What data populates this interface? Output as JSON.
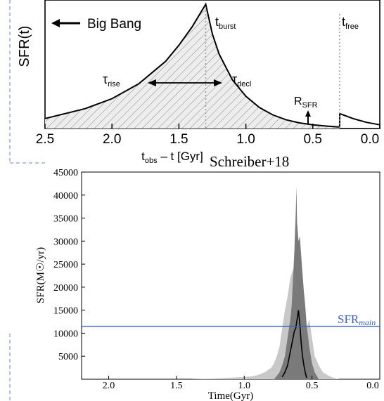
{
  "chart_data": [
    {
      "type": "line",
      "xlabel": "t_obs – t [Gyr]",
      "ylabel": "SFR(t)",
      "xlim": [
        2.5,
        0.0
      ],
      "x_ticks": [
        "2.5",
        "2.0",
        "1.5",
        "1.0",
        "0.5",
        "0.0"
      ],
      "x_tick_values": [
        2.5,
        2.0,
        1.5,
        1.0,
        0.5,
        0.0
      ],
      "y_ticks_shown": false,
      "grid": false,
      "series": [
        {
          "x": [
            2.5,
            2.2,
            2.0,
            1.8,
            1.6,
            1.5,
            1.4,
            1.3,
            1.25,
            1.2,
            1.1,
            1.0,
            0.9,
            0.8,
            0.7,
            0.6,
            0.5,
            0.4,
            0.3,
            0.299,
            0.2,
            0.1,
            0.0
          ],
          "values": [
            0.08,
            0.16,
            0.24,
            0.36,
            0.54,
            0.67,
            0.82,
            1.0,
            0.76,
            0.6,
            0.39,
            0.26,
            0.17,
            0.11,
            0.07,
            0.045,
            0.03,
            0.02,
            0.012,
            0.12,
            0.08,
            0.05,
            0.03
          ]
        }
      ],
      "annotations": {
        "big_bang": "Big Bang",
        "t_burst_main": "t",
        "t_burst_sub": "burst",
        "t_free_main": "t",
        "t_free_sub": "free",
        "tau_rise_main": "τ",
        "tau_rise_sub": "rise",
        "tau_decl_main": "τ",
        "tau_decl_sub": "decl",
        "r_sfr_main": "R",
        "r_sfr_sub": "SFR",
        "t_burst_x": 1.3,
        "t_free_x": 0.3
      },
      "credit": "Schreiber+18"
    },
    {
      "type": "area",
      "xlabel": "Time(Gyr)",
      "ylabel": "SFR(M☉/yr)",
      "xlim": [
        2.2,
        0.0
      ],
      "ylim": [
        0,
        45000
      ],
      "x_ticks": [
        "2.0",
        "1.5",
        "1.0",
        "0.5",
        "0.0"
      ],
      "x_tick_values": [
        2.0,
        1.5,
        1.0,
        0.5,
        0.0
      ],
      "y_ticks": [
        "5000",
        "10000",
        "15000",
        "20000",
        "25000",
        "30000",
        "35000",
        "40000",
        "45000"
      ],
      "y_tick_values": [
        5000,
        10000,
        15000,
        20000,
        25000,
        30000,
        35000,
        40000,
        45000
      ],
      "grid": false,
      "series": [
        {
          "name": "light",
          "x": [
            1.4,
            1.2,
            1.05,
            0.95,
            0.9,
            0.85,
            0.8,
            0.78,
            0.76,
            0.74,
            0.72,
            0.7,
            0.68,
            0.66,
            0.64,
            0.62,
            0.6,
            0.58,
            0.56,
            0.54,
            0.52,
            0.5,
            0.48,
            0.45,
            0.42,
            0.38,
            0.35,
            0.3
          ],
          "values": [
            0,
            200,
            400,
            600,
            900,
            1500,
            2500,
            3500,
            5000,
            7000,
            11000,
            15000,
            18000,
            22000,
            24000,
            20000,
            26000,
            21000,
            17000,
            11000,
            13000,
            9000,
            5000,
            3000,
            1500,
            800,
            400,
            0
          ]
        },
        {
          "name": "dark",
          "x": [
            0.78,
            0.74,
            0.72,
            0.7,
            0.68,
            0.66,
            0.65,
            0.64,
            0.63,
            0.62,
            0.615,
            0.61,
            0.6,
            0.59,
            0.58,
            0.57,
            0.56,
            0.55,
            0.54,
            0.52,
            0.5,
            0.48,
            0.45
          ],
          "values": [
            0,
            1500,
            3000,
            5000,
            9000,
            13000,
            16000,
            22000,
            28000,
            36000,
            42000,
            34000,
            30000,
            31000,
            27000,
            23000,
            19000,
            16000,
            12000,
            7000,
            3500,
            1500,
            0
          ]
        },
        {
          "name": "mean",
          "x": [
            0.72,
            0.7,
            0.68,
            0.66,
            0.64,
            0.63,
            0.62,
            0.61,
            0.6,
            0.59,
            0.58,
            0.57,
            0.56,
            0.55,
            0.54
          ],
          "values": [
            500,
            1500,
            3000,
            6000,
            9000,
            10500,
            11000,
            13000,
            15000,
            12000,
            8000,
            5000,
            3000,
            1500,
            300
          ]
        }
      ],
      "hline": {
        "value": 11500,
        "label_main": "SFR",
        "label_sub": "main",
        "color": "#3a62c9"
      },
      "colors": {
        "light": "#c8c8c8",
        "dark": "#7a7a7a",
        "mean": "#000000",
        "hline": "#3a62c9"
      }
    }
  ]
}
